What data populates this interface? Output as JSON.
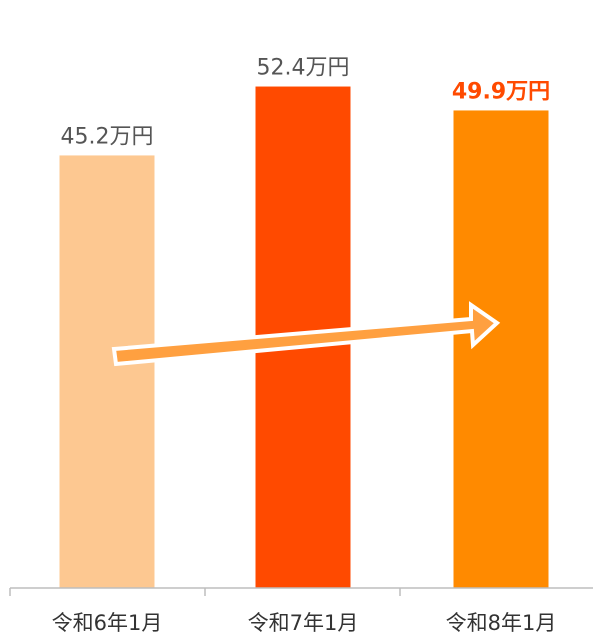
{
  "chart_data": {
    "type": "bar",
    "categories": [
      "令和6年1月",
      "令和7年1月",
      "令和8年1月"
    ],
    "values": [
      45.2,
      52.4,
      49.9
    ],
    "value_labels": [
      "45.2万円",
      "52.4万円",
      "49.9万円"
    ],
    "unit": "万円",
    "title": "",
    "xlabel": "",
    "ylabel": "",
    "ylim": [
      0,
      55
    ],
    "grid": false,
    "colors": {
      "bars": [
        "#FDC891",
        "#FF4A00",
        "#FF8A00"
      ],
      "labels": [
        "#555555",
        "#555555",
        "#FF4A00"
      ],
      "arrow": "#FFA040"
    },
    "highlight_index": 2,
    "annotation": "trend-arrow"
  }
}
